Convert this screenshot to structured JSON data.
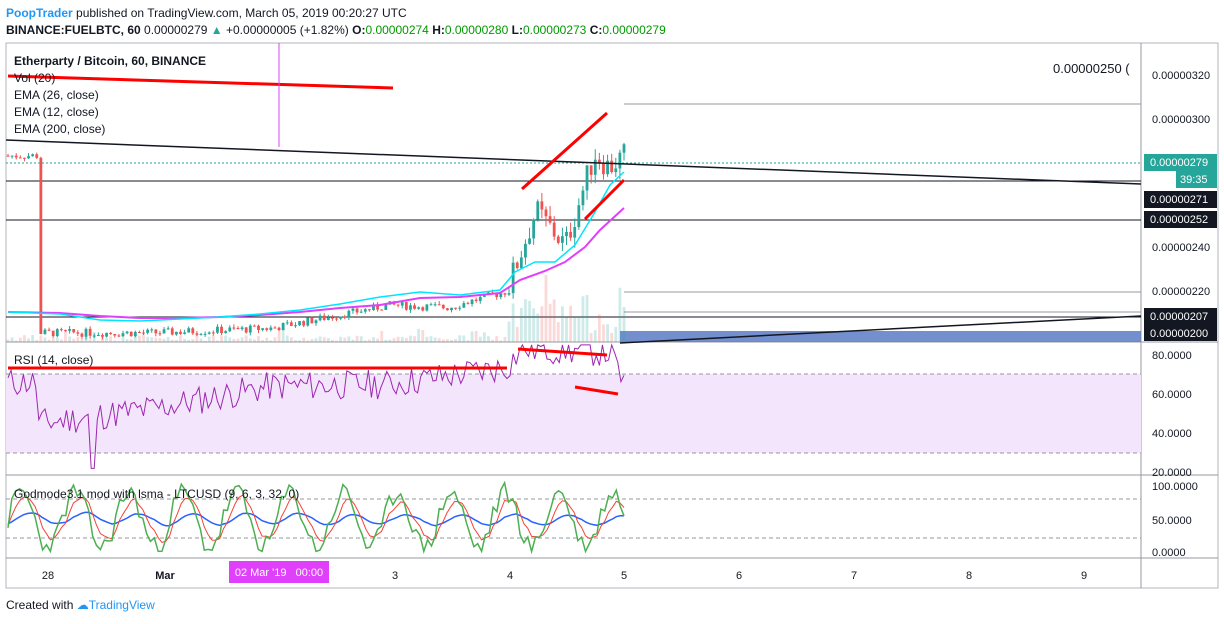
{
  "header": {
    "author": "PoopTrader",
    "published": "published on TradingView.com, March 05, 2019 00:20:27 UTC",
    "symbol": "BINANCE:FUELBTC, 60",
    "last": "0.00000279",
    "change_arrow": "▲",
    "change": "+0.00000005 (+1.82%)",
    "o_label": "O:",
    "o": "0.00000274",
    "h_label": "H:",
    "h": "0.00000280",
    "l_label": "L:",
    "l": "0.00000273",
    "c_label": "C:",
    "c": "0.00000279"
  },
  "legend": {
    "title": "Etherparty / Bitcoin, 60, BINANCE",
    "items": [
      "Vol (20)",
      "EMA (26, close)",
      "EMA (12, close)",
      "EMA (200, close)"
    ]
  },
  "annotation": "0.00000250 (",
  "price_axis": {
    "ticks": [
      "0.00000320",
      "0.00000300",
      "0.00000240",
      "0.00000220"
    ],
    "labels": [
      {
        "text": "0.00000279",
        "style": "teal"
      },
      {
        "text": "39:35",
        "style": "teal"
      },
      {
        "text": "0.00000271",
        "style": "dark"
      },
      {
        "text": "0.00000252",
        "style": "dark"
      },
      {
        "text": "0.00000207",
        "style": "dark"
      },
      {
        "text": "0.00000200",
        "style": "dark"
      }
    ]
  },
  "rsi": {
    "title": "RSI (14, close)",
    "ticks": [
      "80.0000",
      "60.0000",
      "40.0000",
      "20.0000"
    ]
  },
  "godmode": {
    "title": "Godmode3.1 mod with lsma - LTCUSD (9, 6, 3, 32, 0)",
    "ticks": [
      "100.0000",
      "50.0000",
      "0.0000"
    ]
  },
  "time_axis": {
    "ticks": [
      "28",
      "Mar",
      "2",
      "3",
      "4",
      "5",
      "6",
      "7",
      "8",
      "9"
    ],
    "cursor_label": "02 Mar '19   00:00"
  },
  "footer": {
    "created_with": "Created with",
    "brand": "TradingView"
  },
  "colors": {
    "up": "#26a69a",
    "down": "#ef5350",
    "ema12": "#00e5ff",
    "ema26": "#e040fb",
    "trend": "#ff0000",
    "rsi": "#9c27b0",
    "rsi_band": "#f3e5fb"
  },
  "chart_data": {
    "type": "candlestick",
    "title": "Etherparty / Bitcoin, 60, BINANCE",
    "price_range": [
      1.98e-06,
      3.28e-06
    ],
    "x_range_days": [
      "2019-02-27 18:00",
      "2019-03-09 12:00"
    ],
    "key_levels": [
      2.71e-06,
      2.52e-06,
      2.07e-06,
      2e-06
    ],
    "candles_close_by_period": [
      {
        "t": "2019-02-28",
        "close": 2.02e-06
      },
      {
        "t": "2019-03-01",
        "close": 2.02e-06
      },
      {
        "t": "2019-03-02",
        "close": 2.04e-06
      },
      {
        "t": "2019-03-03",
        "close": 2.14e-06
      },
      {
        "t": "2019-03-03 12:00",
        "close": 2.13e-06
      },
      {
        "t": "2019-03-04",
        "close": 2.2e-06
      },
      {
        "t": "2019-03-04 06:00",
        "close": 2.55e-06
      },
      {
        "t": "2019-03-04 12:00",
        "close": 2.4e-06
      },
      {
        "t": "2019-03-04 18:00",
        "close": 2.8e-06
      },
      {
        "t": "2019-03-04 21:00",
        "close": 2.74e-06
      },
      {
        "t": "2019-03-05",
        "close": 2.79e-06
      }
    ],
    "rsi_range": [
      15,
      85
    ],
    "rsi_series_key": [
      {
        "t": "2019-02-28",
        "v": 42
      },
      {
        "t": "2019-03-01",
        "v": 50
      },
      {
        "t": "2019-03-02",
        "v": 62
      },
      {
        "t": "2019-03-03",
        "v": 63
      },
      {
        "t": "2019-03-04",
        "v": 72
      },
      {
        "t": "2019-03-04 03:00",
        "v": 82
      },
      {
        "t": "2019-03-04 21:00",
        "v": 80
      },
      {
        "t": "2019-03-05",
        "v": 64
      }
    ],
    "godmode_range": [
      0,
      100
    ]
  }
}
